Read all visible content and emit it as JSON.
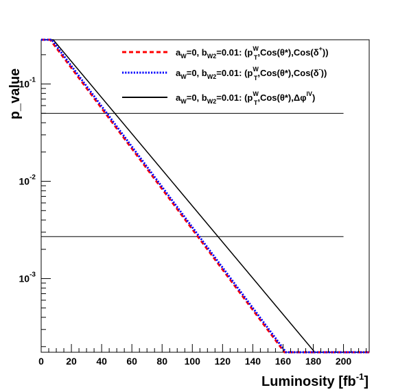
{
  "chart_data": {
    "type": "line",
    "xlabel": "Luminosity [fb",
    "xlabel_sup": "-1",
    "xlabel_close": "]",
    "ylabel": "p_value",
    "xlim": [
      0,
      217
    ],
    "ylim": [
      0.000175,
      0.285
    ],
    "yscale": "log",
    "x_ticks": [
      "0",
      "20",
      "40",
      "60",
      "80",
      "100",
      "120",
      "140",
      "160",
      "180",
      "200"
    ],
    "y_ticks": [
      {
        "base": "10",
        "exp": "-1",
        "value": 0.1
      },
      {
        "base": "10",
        "exp": "-2",
        "value": 0.01
      },
      {
        "base": "10",
        "exp": "-3",
        "value": 0.001
      }
    ],
    "reference_lines": [
      0.05,
      0.0027
    ],
    "reference_line_range": [
      0,
      200
    ],
    "legend_position": "top-right",
    "series": [
      {
        "color": "#ff0000",
        "style": "dashed",
        "label_parts": [
          {
            "t": "a"
          },
          {
            "t": "W",
            "sub": true
          },
          {
            "t": "=0, b"
          },
          {
            "t": "W2",
            "sub": true
          },
          {
            "t": "=0.01: (p"
          },
          {
            "t": "W",
            "sup": true,
            "sub_after": "T"
          },
          {
            "t": ",Cos(θ*),Cos(δ"
          },
          {
            "t": "+",
            "sup": true
          },
          {
            "t": "))"
          }
        ],
        "x": [
          0,
          6,
          161,
          217
        ],
        "y": [
          0.285,
          0.285,
          0.000175,
          0.000175
        ]
      },
      {
        "color": "#0000ff",
        "style": "dotted",
        "label_parts": [
          {
            "t": "a"
          },
          {
            "t": "W",
            "sub": true
          },
          {
            "t": "=0, b"
          },
          {
            "t": "W2",
            "sub": true
          },
          {
            "t": "=0.01: (p"
          },
          {
            "t": "W",
            "sup": true,
            "sub_after": "T"
          },
          {
            "t": ",Cos(θ*),Cos(δ"
          },
          {
            "t": "-",
            "sup": true
          },
          {
            "t": "))"
          }
        ],
        "x": [
          0,
          7,
          162,
          217
        ],
        "y": [
          0.285,
          0.285,
          0.000175,
          0.000175
        ]
      },
      {
        "color": "#000000",
        "style": "solid",
        "label_parts": [
          {
            "t": "a"
          },
          {
            "t": "W",
            "sub": true
          },
          {
            "t": "=0, b"
          },
          {
            "t": "W2",
            "sub": true
          },
          {
            "t": "=0.01: (p"
          },
          {
            "t": "W",
            "sup": true,
            "sub_after": "T"
          },
          {
            "t": ",Cos(θ*),Δφ"
          },
          {
            "t": "lV",
            "sup": true
          },
          {
            "t": ")"
          }
        ],
        "x": [
          0,
          8,
          181,
          217
        ],
        "y": [
          0.285,
          0.285,
          0.000175,
          0.000175
        ]
      }
    ]
  }
}
